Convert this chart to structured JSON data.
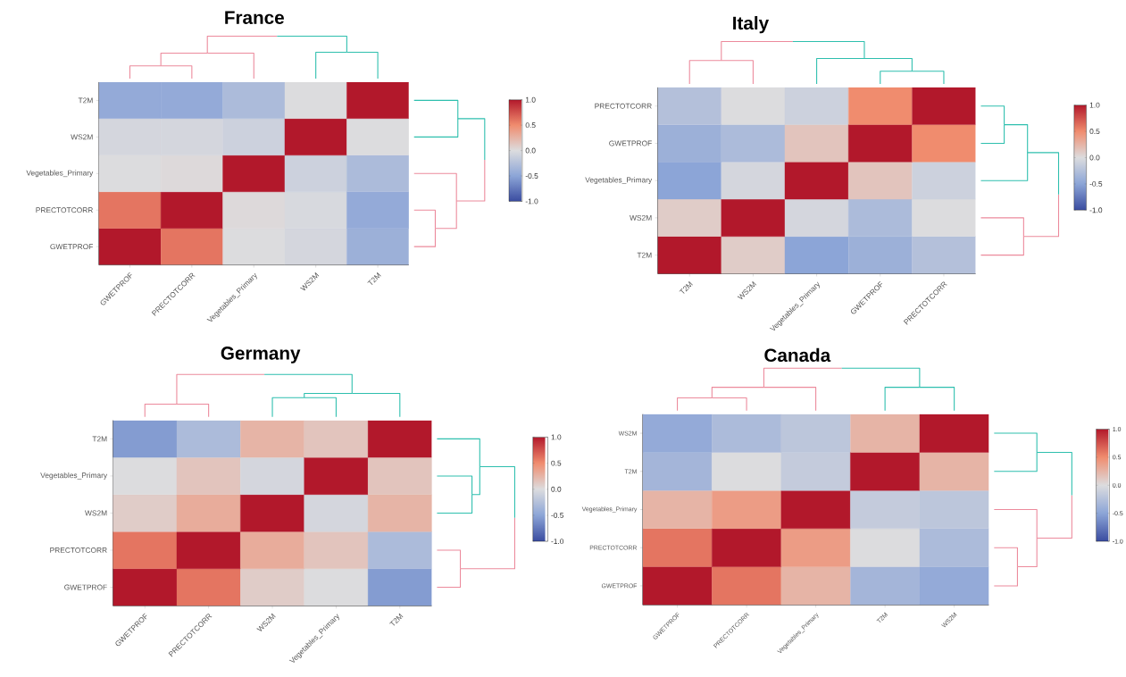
{
  "chart_data": [
    {
      "type": "heatmap",
      "title": "France",
      "categories": [
        "GWETPROF",
        "PRECTOTCORR",
        "Vegetables_Primary",
        "WS2M",
        "T2M"
      ],
      "y_categories": [
        "T2M",
        "WS2M",
        "Vegetables_Primary",
        "PRECTOTCORR",
        "GWETPROF"
      ],
      "cells": [
        [
          -0.45,
          -0.45,
          -0.3,
          0.0,
          1
        ],
        [
          -0.05,
          -0.05,
          -0.1,
          1,
          0.0
        ],
        [
          0.0,
          0.02,
          1,
          -0.1,
          -0.3
        ],
        [
          0.6,
          1,
          0.02,
          -0.03,
          -0.45
        ],
        [
          1,
          0.6,
          0.0,
          -0.05,
          -0.4
        ]
      ],
      "clim": [
        -1,
        1
      ],
      "cticks": [
        {
          "value": -1,
          "label": "-1.0"
        },
        {
          "value": -0.5,
          "label": "-0.5"
        },
        {
          "value": 0,
          "label": "0.0"
        },
        {
          "value": 0.5,
          "label": "0.5"
        },
        {
          "value": 1,
          "label": "1.0"
        }
      ]
    },
    {
      "type": "heatmap",
      "title": "Italy",
      "categories": [
        "T2M",
        "WS2M",
        "Vegetables_Primary",
        "GWETPROF",
        "PRECTOTCORR"
      ],
      "y_categories": [
        "PRECTOTCORR",
        "GWETPROF",
        "Vegetables_Primary",
        "WS2M",
        "T2M"
      ],
      "cells": [
        [
          -0.25,
          0.0,
          -0.1,
          0.5,
          1
        ],
        [
          -0.4,
          -0.3,
          0.15,
          1,
          0.5
        ],
        [
          -0.5,
          -0.05,
          1,
          0.15,
          -0.1
        ],
        [
          0.1,
          1,
          -0.05,
          -0.3,
          0.0
        ],
        [
          1,
          0.1,
          -0.5,
          -0.4,
          -0.25
        ]
      ],
      "clim": [
        -1,
        1
      ],
      "cticks": [
        {
          "value": -1,
          "label": "-1.0"
        },
        {
          "value": -0.5,
          "label": "-0.5"
        },
        {
          "value": 0,
          "label": "0.0"
        },
        {
          "value": 0.5,
          "label": "0.5"
        },
        {
          "value": 1,
          "label": "1.0"
        }
      ]
    },
    {
      "type": "heatmap",
      "title": "Germany",
      "categories": [
        "GWETPROF",
        "PRECTOTCORR",
        "WS2M",
        "Vegetables_Primary",
        "T2M"
      ],
      "y_categories": [
        "T2M",
        "Vegetables_Primary",
        "WS2M",
        "PRECTOTCORR",
        "GWETPROF"
      ],
      "cells": [
        [
          -0.55,
          -0.3,
          0.25,
          0.15,
          1
        ],
        [
          0.0,
          0.15,
          -0.05,
          1,
          0.15
        ],
        [
          0.1,
          0.3,
          1,
          -0.05,
          0.25
        ],
        [
          0.6,
          1,
          0.3,
          0.15,
          -0.3
        ],
        [
          1,
          0.6,
          0.1,
          0.0,
          -0.55
        ]
      ],
      "clim": [
        -1,
        1
      ],
      "cticks": [
        {
          "value": -1,
          "label": "-1.0"
        },
        {
          "value": -0.5,
          "label": "-0.5"
        },
        {
          "value": 0,
          "label": "0.0"
        },
        {
          "value": 0.5,
          "label": "0.5"
        },
        {
          "value": 1,
          "label": "1.0"
        }
      ]
    },
    {
      "type": "heatmap",
      "title": "Canada",
      "categories": [
        "GWETPROF",
        "PRECTOTCORR",
        "Vegetables_Primary",
        "T2M",
        "WS2M"
      ],
      "y_categories": [
        "WS2M",
        "T2M",
        "Vegetables_Primary",
        "PRECTOTCORR",
        "GWETPROF"
      ],
      "cells": [
        [
          -0.45,
          -0.3,
          -0.2,
          0.25,
          1
        ],
        [
          -0.35,
          0.0,
          -0.15,
          1,
          0.25
        ],
        [
          0.25,
          0.4,
          1,
          -0.15,
          -0.2
        ],
        [
          0.6,
          1,
          0.4,
          0.0,
          -0.3
        ],
        [
          1,
          0.6,
          0.25,
          -0.35,
          -0.45
        ]
      ],
      "clim": [
        -1,
        1
      ],
      "cticks": [
        {
          "value": -1,
          "label": "-1.0"
        },
        {
          "value": -0.5,
          "label": "-0.5"
        },
        {
          "value": 0,
          "label": "0.0"
        },
        {
          "value": 0.5,
          "label": "0.5"
        },
        {
          "value": 1,
          "label": "1.0"
        }
      ]
    }
  ]
}
